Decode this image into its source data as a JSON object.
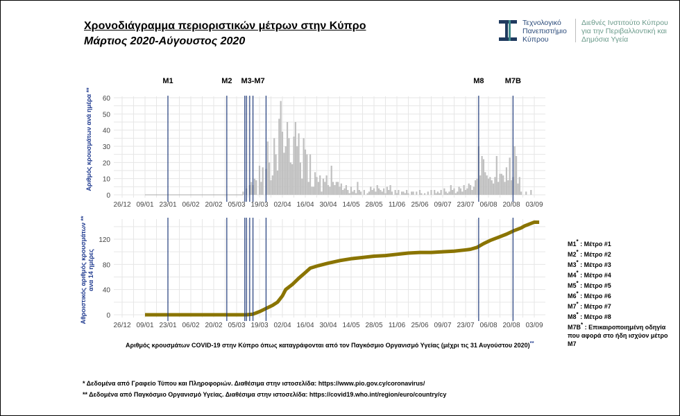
{
  "header": {
    "title": "Χρονοδιάγραμμα περιοριστικών μέτρων στην Κύπρο",
    "subtitle": "Μάρτιος 2020-Αύγουστος 2020",
    "logo_left": "Τεχνολογικό Πανεπιστήμιο Κύπρου",
    "logo_right": "Διεθνές Ινστιτούτο Κύπρου για την Περιβαλλοντική και Δημόσια Υγεία"
  },
  "colors": {
    "bars": "#c0c0c0",
    "line": "#8a7400",
    "measures": "#1f3a7a",
    "grid": "#e6e6e6"
  },
  "chart_data": [
    {
      "type": "bar",
      "ylabel": "Αριθμός κρουσμάτων ανά ημέρα **",
      "ylim": [
        0,
        60
      ],
      "yticks": [
        "0",
        "10",
        "20",
        "30",
        "40",
        "50",
        "60"
      ],
      "x_unit": "days since 26/12/2019",
      "xticks": [
        "26/12",
        "09/01",
        "23/01",
        "06/02",
        "20/02",
        "05/03",
        "19/03",
        "02/04",
        "16/04",
        "30/04",
        "14/05",
        "28/05",
        "11/06",
        "25/06",
        "09/07",
        "23/07",
        "06/08",
        "20/08",
        "03/09"
      ],
      "start_day": 74,
      "values": [
        2,
        0,
        4,
        0,
        6,
        8,
        6,
        10,
        9,
        0,
        18,
        8,
        17,
        0,
        16,
        33,
        20,
        9,
        12,
        35,
        25,
        15,
        47,
        58,
        39,
        26,
        30,
        45,
        35,
        20,
        19,
        36,
        45,
        30,
        38,
        20,
        10,
        35,
        28,
        25,
        8,
        25,
        5,
        5,
        14,
        11,
        8,
        12,
        2,
        10,
        8,
        12,
        6,
        5,
        18,
        8,
        6,
        8,
        8,
        5,
        7,
        3,
        4,
        6,
        3,
        1,
        5,
        2,
        3,
        1,
        8,
        3,
        2,
        0,
        3,
        0,
        1,
        2,
        5,
        3,
        4,
        2,
        6,
        4,
        3,
        2,
        4,
        1,
        5,
        3,
        6,
        2,
        0,
        3,
        1,
        3,
        0,
        2,
        2,
        1,
        3,
        1,
        0,
        2,
        2,
        0,
        2,
        0,
        3,
        1,
        0,
        1,
        0,
        2,
        0,
        3,
        0,
        3,
        1,
        2,
        1,
        3,
        0,
        4,
        2,
        1,
        2,
        6,
        3,
        4,
        1,
        2,
        5,
        4,
        2,
        6,
        3,
        4,
        7,
        6,
        3,
        5,
        9,
        10,
        30,
        12,
        24,
        22,
        14,
        12,
        10,
        11,
        9,
        7,
        11,
        24,
        8,
        13,
        13,
        12,
        8,
        17,
        9,
        23,
        9,
        11,
        30,
        24,
        7,
        11,
        2,
        0,
        0,
        2,
        0,
        0,
        3
      ]
    },
    {
      "type": "line",
      "ylabel": "Αθροιστικός αριθμός κρουσμάτων ** ανα 14 ημέρες",
      "ylim": [
        0,
        150
      ],
      "yticks": [
        "0",
        "40",
        "80",
        "120"
      ],
      "x_unit": "days since 26/12/2019",
      "points": [
        [
          14,
          0
        ],
        [
          76,
          0
        ],
        [
          80,
          1
        ],
        [
          84,
          5
        ],
        [
          88,
          10
        ],
        [
          92,
          15
        ],
        [
          95,
          20
        ],
        [
          98,
          30
        ],
        [
          100,
          40
        ],
        [
          104,
          48
        ],
        [
          108,
          58
        ],
        [
          112,
          67
        ],
        [
          115,
          74
        ],
        [
          120,
          78
        ],
        [
          126,
          82
        ],
        [
          133,
          86
        ],
        [
          140,
          89
        ],
        [
          147,
          91
        ],
        [
          154,
          93
        ],
        [
          161,
          94
        ],
        [
          168,
          96
        ],
        [
          175,
          98
        ],
        [
          182,
          99
        ],
        [
          189,
          99
        ],
        [
          196,
          100
        ],
        [
          203,
          101
        ],
        [
          210,
          103
        ],
        [
          213,
          104
        ],
        [
          217,
          107
        ],
        [
          221,
          113
        ],
        [
          225,
          118
        ],
        [
          230,
          123
        ],
        [
          235,
          128
        ],
        [
          240,
          134
        ],
        [
          244,
          138
        ],
        [
          246,
          141
        ],
        [
          249,
          144
        ],
        [
          252,
          147
        ],
        [
          255,
          147
        ]
      ]
    }
  ],
  "measures": [
    {
      "label": "M1",
      "day": 28
    },
    {
      "label": "M2",
      "day": 64
    },
    {
      "label": "",
      "day": 75
    },
    {
      "label": "",
      "day": 76
    },
    {
      "label": "",
      "day": 78
    },
    {
      "label": "",
      "day": 80
    },
    {
      "label": "",
      "day": 88
    },
    {
      "label": "M8",
      "day": 218
    },
    {
      "label": "M7B",
      "day": 239
    }
  ],
  "group_label": "M3-M7",
  "legend": [
    {
      "code": "M1",
      "text": ": Μέτρο #1"
    },
    {
      "code": "M2",
      "text": ": Μέτρο #2"
    },
    {
      "code": "M3",
      "text": ": Μέτρο #3"
    },
    {
      "code": "M4",
      "text": ": Μέτρο #4"
    },
    {
      "code": "M5",
      "text": ": Μέτρο #5"
    },
    {
      "code": "M6",
      "text": ": Μέτρο #6"
    },
    {
      "code": "M7",
      "text": ": Μέτρο #7"
    },
    {
      "code": "M8",
      "text": ": Μέτρο #8"
    },
    {
      "code": "M7B",
      "text": ": Επικαιροποιημένη οδηγία που αφορά στο ήδη ισχύον μέτρο M7"
    }
  ],
  "star": "*",
  "caption": "Αριθμός κρουσμάτων COVID-19 στην Κύπρο όπως καταγράφονται από τον Παγκόσμιο Οργανισμό Υγείας (μέχρι τις 31 Αυγούστου 2020)",
  "caption_mark": "**",
  "footnotes": [
    "* Δεδομένα από Γραφείο Τύπου και Πληροφοριών. Διαθέσιμα στην ιστοσελίδα: https://www.pio.gov.cy/coronavirus/",
    "** Δεδομένα από Παγκόσμιο Οργανισμό Υγείας. Διαθέσιμα στην ιστοσελίδα: https://covid19.who.int/region/euro/country/cy"
  ]
}
